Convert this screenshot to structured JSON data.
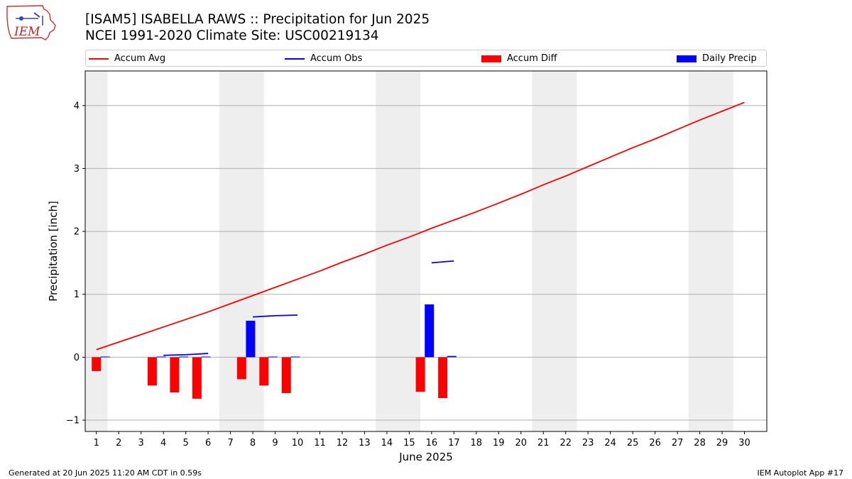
{
  "title_line1": "[ISAM5] ISABELLA RAWS :: Precipitation for Jun 2025",
  "title_line2": "NCEI 1991-2020 Climate Site: USC00219134",
  "logo_text": "IEM",
  "footer_left": "Generated at 20 Jun 2025 11:20 AM CDT in 0.59s",
  "footer_right": "IEM Autoplot App #17",
  "legend": [
    {
      "label": "Accum Avg",
      "kind": "line",
      "color": "#ff0000"
    },
    {
      "label": "Accum Obs",
      "kind": "line",
      "color": "#0000ff"
    },
    {
      "label": "Accum Diff",
      "kind": "bar",
      "color": "#ff0000"
    },
    {
      "label": "Daily Precip",
      "kind": "bar",
      "color": "#0000ff"
    }
  ],
  "chart_data": {
    "type": "bar",
    "xlabel": "June 2025",
    "ylabel": "Precipitation [inch]",
    "xlim": [
      0.5,
      31.0
    ],
    "ylim": [
      -1.18,
      4.55
    ],
    "yticks": [
      -1,
      0,
      1,
      2,
      3,
      4
    ],
    "xticks": [
      1,
      2,
      3,
      4,
      5,
      6,
      7,
      8,
      9,
      10,
      11,
      12,
      13,
      14,
      15,
      16,
      17,
      18,
      19,
      20,
      21,
      22,
      23,
      24,
      25,
      26,
      27,
      28,
      29,
      30
    ],
    "grid": "y",
    "weekend_shading": [
      [
        0.5,
        1.5
      ],
      [
        6.5,
        8.5
      ],
      [
        13.5,
        15.5
      ],
      [
        20.5,
        22.5
      ],
      [
        27.5,
        29.5
      ]
    ],
    "shading_color": "#eeeeee",
    "accum_avg": {
      "name": "Accum Avg",
      "color": "#ff0000",
      "x": [
        1,
        2,
        3,
        4,
        5,
        6,
        7,
        8,
        9,
        10,
        11,
        12,
        13,
        14,
        15,
        16,
        17,
        18,
        19,
        20,
        21,
        22,
        23,
        24,
        25,
        26,
        27,
        28,
        29,
        30
      ],
      "y": [
        0.12,
        0.24,
        0.36,
        0.48,
        0.6,
        0.72,
        0.85,
        0.98,
        1.11,
        1.24,
        1.37,
        1.51,
        1.64,
        1.78,
        1.91,
        2.05,
        2.18,
        2.31,
        2.45,
        2.59,
        2.74,
        2.88,
        3.03,
        3.18,
        3.33,
        3.47,
        3.62,
        3.77,
        3.91,
        4.05
      ]
    },
    "accum_obs": {
      "name": "Accum Obs",
      "color": "#0000ff",
      "segments": [
        {
          "x": [
            4,
            5,
            6
          ],
          "y": [
            0.03,
            0.04,
            0.06
          ]
        },
        {
          "x": [
            8,
            9,
            10
          ],
          "y": [
            0.64,
            0.66,
            0.67
          ]
        },
        {
          "x": [
            16,
            17
          ],
          "y": [
            1.5,
            1.53
          ]
        }
      ]
    },
    "accum_diff": {
      "name": "Accum Diff",
      "color": "#ff0000",
      "x": [
        1,
        3.5,
        4.5,
        5.5,
        7.5,
        8.5,
        9.5,
        15.5,
        16.5
      ],
      "values": [
        -0.22,
        -0.45,
        -0.56,
        -0.66,
        -0.35,
        -0.45,
        -0.57,
        -0.55,
        -0.65
      ]
    },
    "daily_precip": {
      "name": "Daily Precip",
      "color": "#0000ff",
      "x": [
        1,
        3.5,
        4.5,
        5.5,
        7.5,
        8.5,
        9.5,
        15.5,
        16.5
      ],
      "values": [
        0.01,
        0.01,
        0.01,
        0.01,
        0.58,
        0.01,
        0.01,
        0.84,
        0.02
      ]
    }
  }
}
